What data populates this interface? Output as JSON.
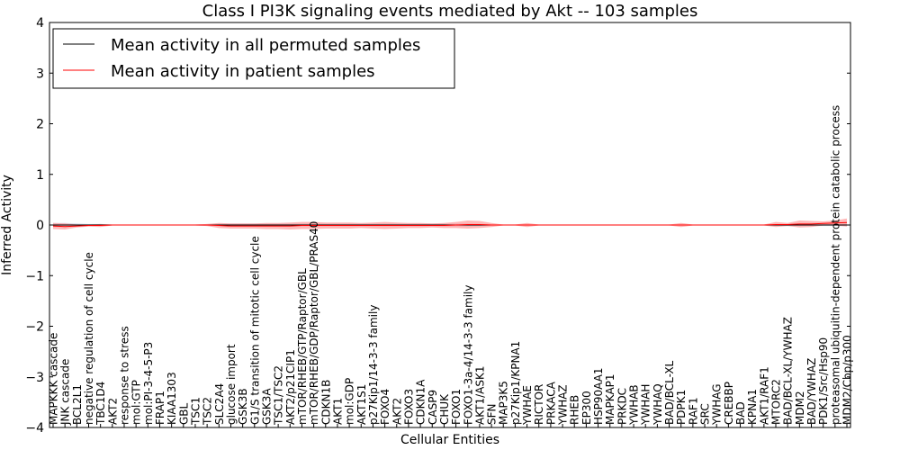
{
  "chart_data": {
    "type": "line",
    "title": "Class I PI3K signaling events mediated by Akt -- 103 samples",
    "xlabel": "Cellular Entities",
    "ylabel": "Inferred Activity",
    "ylim": [
      -4,
      4
    ],
    "yticks": [
      "−4",
      "−3",
      "−2",
      "−1",
      "0",
      "1",
      "2",
      "3",
      "4"
    ],
    "legend_position": "top-left",
    "grid": false,
    "categories": [
      "MAPKKK cascade",
      "JNK cascade",
      "BCL2L1",
      "negative regulation of cell cycle",
      "TBC1D4",
      "AKT2",
      "response to stress",
      "mol:GTP",
      "mol:PI-3-4-5-P3",
      "FRAP1",
      "KIAA1303",
      "GBL",
      "TSC1",
      "TSC2",
      "SLC2A4",
      "glucose import",
      "GSK3B",
      "G1/S transition of mitotic cell cycle",
      "GSK3A",
      "TSC1/TSC2",
      "AKT2/p21CIP1",
      "mTOR/RHEB/GTP/Raptor/GBL",
      "mTOR/RHEB/GDP/Raptor/GBL/PRAS40",
      "CDKN1B",
      "AKT1",
      "mol:GDP",
      "AKT1S1",
      "p27Kip1/14-3-3 family",
      "FOXO4",
      "AKT2",
      "FOXO3",
      "CDKN1A",
      "CASP9",
      "CHUK",
      "FOXO1",
      "FOXO1-3a-4/14-3-3 family",
      "AKT1/ASK1",
      "SFN",
      "MAP3K5",
      "p27Kip1/KPNA1",
      "YWHAE",
      "RICTOR",
      "PRKACA",
      "YWHAZ",
      "RHEB",
      "EP300",
      "HSP90AA1",
      "MAPKAP1",
      "PRKDC",
      "YWHAB",
      "YWHAH",
      "YWHAQ",
      "BAD/BCL-XL",
      "PDPK1",
      "RAF1",
      "SRC",
      "YWHAG",
      "CREBBP",
      "BAD",
      "KPNA1",
      "AKT1/RAF1",
      "MTORC2",
      "BAD/BCL-XL/YWHAZ",
      "MDM2",
      "BAD/YWHAZ",
      "PDK1/Src/Hsp90",
      "proteasomal ubiquitin-dependent protein catabolic process",
      "MDM2/Cbp/p300"
    ],
    "series": [
      {
        "name": "Mean activity in all permuted samples",
        "color": "#000000",
        "values": [
          0,
          0,
          0,
          0,
          0,
          0,
          0,
          0,
          0,
          0,
          0,
          0,
          0,
          0,
          0,
          0,
          0,
          0,
          0,
          0,
          0,
          0,
          0,
          0,
          0,
          0,
          0,
          0,
          0,
          0,
          0,
          0,
          0,
          0,
          0,
          0,
          0,
          0,
          0,
          0,
          0,
          0,
          0,
          0,
          0,
          0,
          0,
          0,
          0,
          0,
          0,
          0,
          0,
          0,
          0,
          0,
          0,
          0,
          0,
          0,
          0,
          0,
          0,
          0,
          0,
          0,
          0,
          0
        ],
        "band": [
          0.04,
          0.04,
          0.03,
          0.02,
          0.02,
          0.01,
          0.01,
          0.01,
          0.01,
          0.01,
          0.01,
          0.01,
          0.01,
          0.02,
          0.03,
          0.03,
          0.03,
          0.03,
          0.03,
          0.03,
          0.03,
          0.03,
          0.03,
          0.03,
          0.03,
          0.03,
          0.03,
          0.03,
          0.03,
          0.03,
          0.03,
          0.03,
          0.03,
          0.03,
          0.03,
          0.03,
          0.02,
          0.01,
          0.01,
          0.01,
          0.01,
          0.01,
          0.01,
          0.01,
          0.01,
          0.01,
          0.01,
          0.01,
          0.01,
          0.01,
          0.01,
          0.01,
          0.01,
          0.01,
          0.01,
          0.01,
          0.01,
          0.01,
          0.01,
          0.01,
          0.01,
          0.01,
          0.02,
          0.02,
          0.02,
          0.02,
          0.02,
          0.02
        ],
        "band_color": "#c8c8dc"
      },
      {
        "name": "Mean activity in patient samples",
        "color": "#ff0000",
        "values": [
          -0.02,
          -0.03,
          -0.02,
          -0.01,
          -0.01,
          0,
          0,
          0,
          0,
          0,
          0,
          0,
          0,
          0,
          -0.01,
          -0.02,
          -0.02,
          -0.02,
          -0.02,
          -0.02,
          -0.02,
          -0.01,
          -0.01,
          -0.01,
          -0.01,
          -0.01,
          -0.01,
          -0.01,
          -0.01,
          -0.01,
          -0.01,
          -0.01,
          -0.01,
          -0.01,
          0,
          0.01,
          0.01,
          0,
          0,
          0,
          0,
          0,
          0,
          0,
          0,
          0,
          0,
          0,
          0,
          0,
          0,
          0,
          0,
          0,
          0,
          0,
          0,
          0,
          0,
          0,
          0,
          0.01,
          0.01,
          0.02,
          0.02,
          0.03,
          0.04,
          0.05
        ],
        "band": [
          0.06,
          0.06,
          0.03,
          0.02,
          0.03,
          0.01,
          0.01,
          0.01,
          0.01,
          0.01,
          0.01,
          0.01,
          0.01,
          0.02,
          0.05,
          0.05,
          0.05,
          0.05,
          0.06,
          0.06,
          0.07,
          0.07,
          0.07,
          0.06,
          0.06,
          0.06,
          0.05,
          0.06,
          0.07,
          0.06,
          0.05,
          0.05,
          0.04,
          0.05,
          0.06,
          0.08,
          0.07,
          0.04,
          0.01,
          0.01,
          0.04,
          0.01,
          0.01,
          0.01,
          0.01,
          0.01,
          0.01,
          0.01,
          0.01,
          0.01,
          0.01,
          0.01,
          0.01,
          0.04,
          0.01,
          0.01,
          0.01,
          0.01,
          0.01,
          0.01,
          0.01,
          0.05,
          0.03,
          0.07,
          0.06,
          0.04,
          0.05,
          0.08
        ],
        "band_color": "#ff9a9a"
      }
    ]
  }
}
